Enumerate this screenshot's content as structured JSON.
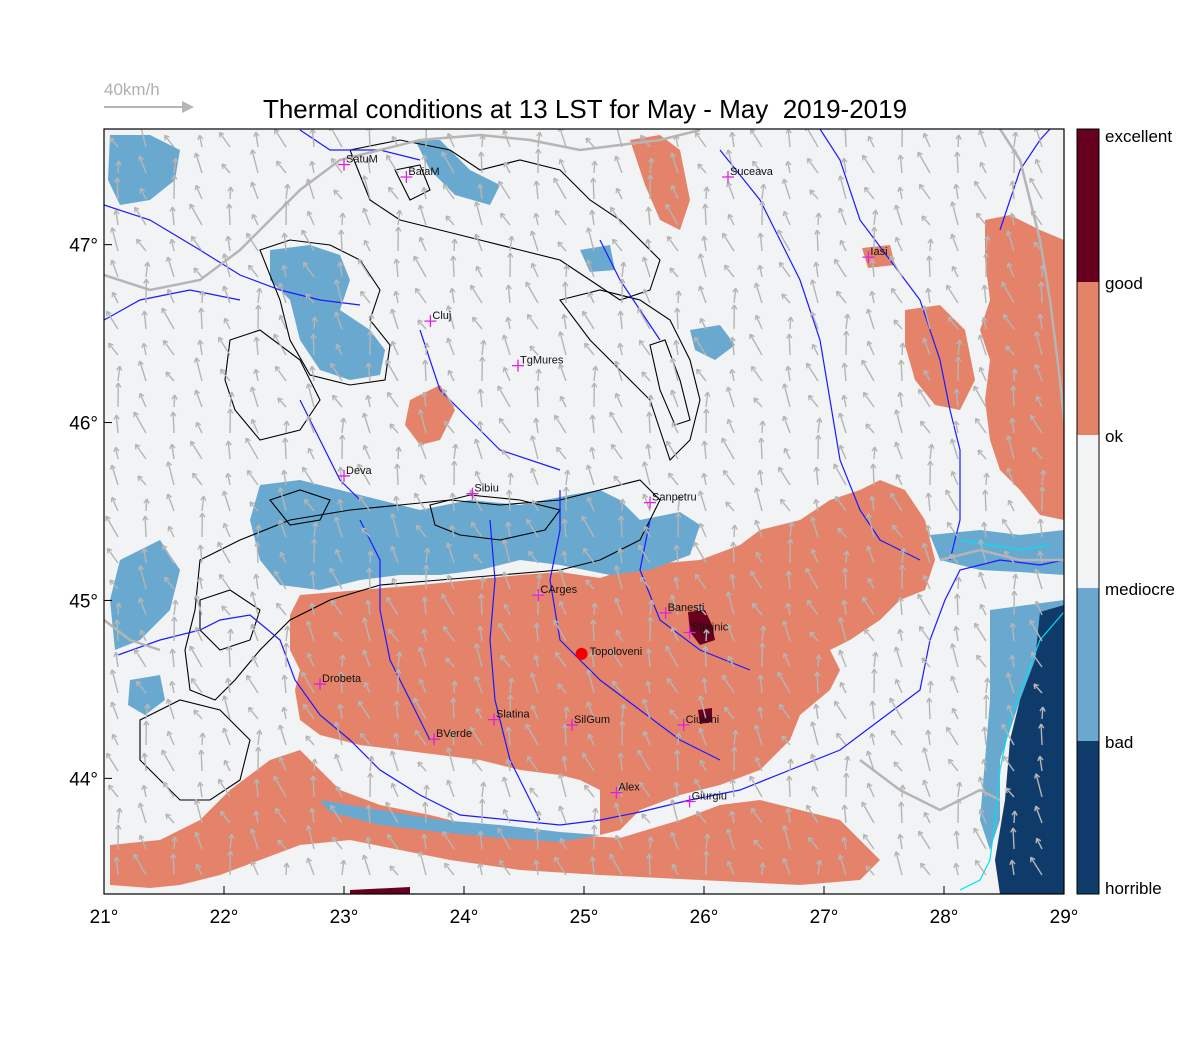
{
  "title": "Thermal conditions at 13 LST for May - May  2019-2019",
  "wind_reference": "40km/h",
  "colors": {
    "excellent": "#67001f",
    "good": "#e4836a",
    "ok": "#f2f3f5",
    "bad": "#69a9d0",
    "horrible": "#0f3b6b",
    "rivers": "#1a1aff",
    "borders": "#b5b5b5",
    "contours": "#000000",
    "city_marker": "#e020e0",
    "highlight_marker": "#ee0000"
  },
  "axes": {
    "x_ticks": [
      "21°",
      "22°",
      "23°",
      "24°",
      "25°",
      "26°",
      "27°",
      "28°",
      "29°"
    ],
    "y_ticks": [
      "44°",
      "45°",
      "46°",
      "47°"
    ],
    "lon_range": [
      21,
      29
    ],
    "lat_range": [
      43.35,
      47.65
    ]
  },
  "colorbar": {
    "labels": [
      "excellent",
      "good",
      "ok",
      "mediocre",
      "bad",
      "horrible"
    ]
  },
  "cities": [
    {
      "name": "SatuM",
      "lon": 23.0,
      "lat": 47.45
    },
    {
      "name": "BaiaM",
      "lon": 23.52,
      "lat": 47.38
    },
    {
      "name": "Suceava",
      "lon": 26.2,
      "lat": 47.38
    },
    {
      "name": "Iasi",
      "lon": 27.37,
      "lat": 46.93
    },
    {
      "name": "Cluj",
      "lon": 23.72,
      "lat": 46.57
    },
    {
      "name": "TgMures",
      "lon": 24.45,
      "lat": 46.32
    },
    {
      "name": "Deva",
      "lon": 23.0,
      "lat": 45.7
    },
    {
      "name": "Sibiu",
      "lon": 24.07,
      "lat": 45.6
    },
    {
      "name": "Sanpetru",
      "lon": 25.55,
      "lat": 45.55
    },
    {
      "name": "CArges",
      "lon": 24.62,
      "lat": 45.03
    },
    {
      "name": "Banesti",
      "lon": 25.68,
      "lat": 44.93
    },
    {
      "name": "Strejnic",
      "lon": 25.88,
      "lat": 44.82
    },
    {
      "name": "Drobeta",
      "lon": 22.8,
      "lat": 44.53
    },
    {
      "name": "BVerde",
      "lon": 23.75,
      "lat": 44.22
    },
    {
      "name": "Slatina",
      "lon": 24.25,
      "lat": 44.33
    },
    {
      "name": "SilGum",
      "lon": 24.9,
      "lat": 44.3
    },
    {
      "name": "Ciuleni",
      "lon": 25.83,
      "lat": 44.3
    },
    {
      "name": "Alex",
      "lon": 25.27,
      "lat": 43.92
    },
    {
      "name": "Giurgiu",
      "lon": 25.88,
      "lat": 43.87
    }
  ],
  "highlight": {
    "name": "Topoloveni",
    "lon": 24.98,
    "lat": 44.7
  }
}
